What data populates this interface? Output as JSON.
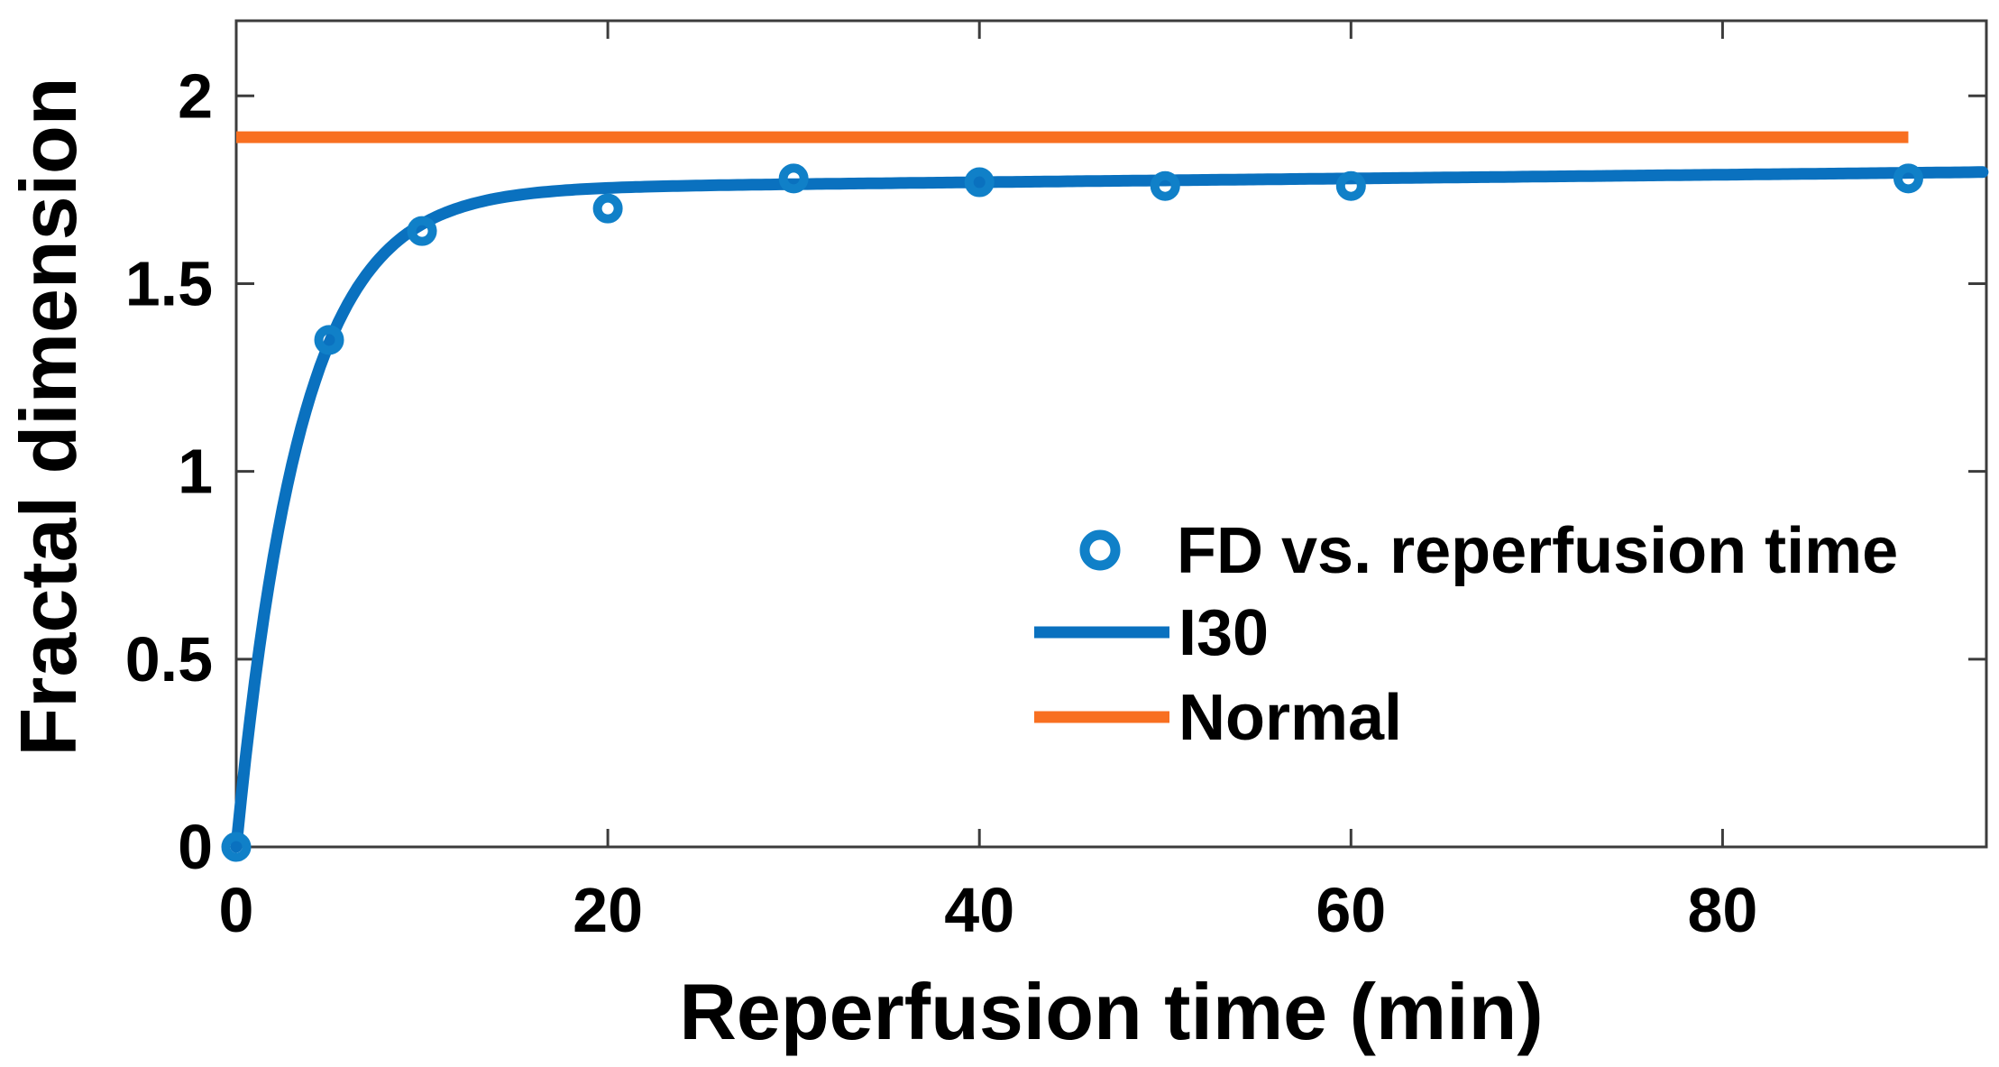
{
  "chart_data": {
    "type": "scatter",
    "title": "",
    "xlabel": "Reperfusion time (min)",
    "ylabel": "Fractal dimension",
    "xlim": [
      0,
      94.2
    ],
    "ylim": [
      0,
      2.2
    ],
    "x_ticks": [
      0,
      20,
      40,
      60,
      80
    ],
    "y_ticks": [
      0,
      0.5,
      1,
      1.5,
      2
    ],
    "grid": false,
    "box": true,
    "series": [
      {
        "name": "FD vs. reperfusion time",
        "type": "scatter",
        "marker": "open-circle",
        "color": "#1080c8",
        "x": [
          0,
          5,
          10,
          20,
          30,
          40,
          50,
          60,
          90
        ],
        "y": [
          0,
          1.35,
          1.64,
          1.7,
          1.78,
          1.77,
          1.76,
          1.76,
          1.78
        ]
      },
      {
        "name": "I30",
        "type": "line",
        "color": "#0a71bf",
        "fit_model": "A*(1-exp(-x/tau)) + m*x",
        "A": 1.75,
        "tau": 3.45,
        "m": 0.0005,
        "x_range": [
          0,
          94.2
        ]
      },
      {
        "name": "Normal",
        "type": "line",
        "color": "#f86f20",
        "y_value": 1.89,
        "x_range": [
          0,
          90
        ]
      }
    ],
    "legend": {
      "position": "right-center",
      "border": false,
      "entries": [
        {
          "label": "FD vs. reperfusion time",
          "swatch": "open-circle",
          "color": "#1080c8"
        },
        {
          "label": "I30",
          "swatch": "line",
          "color": "#0a71bf"
        },
        {
          "label": "Normal",
          "swatch": "line",
          "color": "#f86f20"
        }
      ]
    },
    "colors": {
      "axis": "#3c3c3c",
      "text": "#000000",
      "background": "#ffffff"
    }
  }
}
